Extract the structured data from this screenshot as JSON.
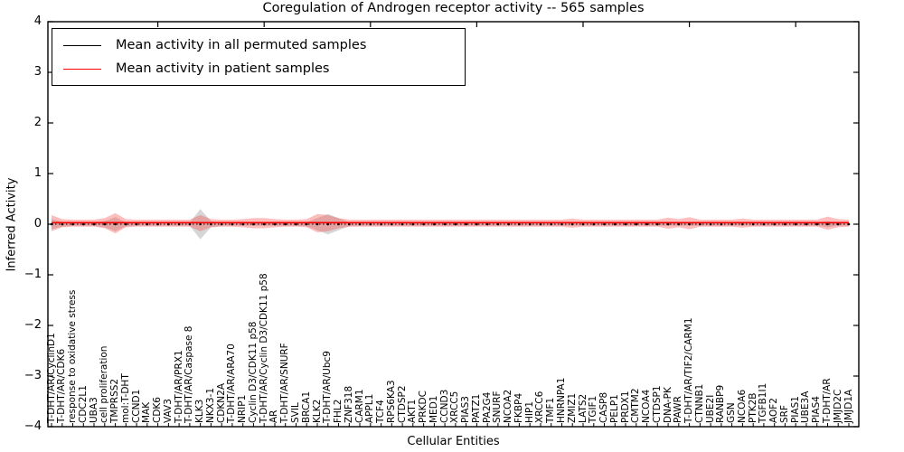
{
  "chart_data": {
    "type": "line",
    "title": "Coregulation of Androgen receptor activity -- 565 samples",
    "xlabel": "Cellular Entities",
    "ylabel": "Inferred Activity",
    "ylim": [
      -4,
      4
    ],
    "yticks": [
      "4",
      "3",
      "2",
      "1",
      "0",
      "−1",
      "−2",
      "−3",
      "−4"
    ],
    "ytick_values": [
      4,
      3,
      2,
      1,
      0,
      -1,
      -2,
      -3,
      -4
    ],
    "grid": false,
    "legend_position": "upper left",
    "categories": [
      "T-DHT/AR/CyclinD1",
      "T-DHT/AR/CDK6",
      "response to oxidative stress",
      "CDC2L1",
      "UBA3",
      "cell proliferation",
      "TMPRSS2",
      "mol:T-DHT",
      "CCND1",
      "MAK",
      "CDK6",
      "VAV3",
      "T-DHT/AR/PRX1",
      "T-DHT/AR/Caspase 8",
      "KLK3",
      "NKX3-1",
      "CDKN2A",
      "T-DHT/AR/ARA70",
      "NRIP1",
      "Cyclin D3/CDK11 p58",
      "T-DHT/AR/Cyclin D3/CDK11 p58",
      "AR",
      "T-DHT/AR/SNURF",
      "SVIL",
      "BRCA1",
      "KLK2",
      "T-DHT/AR/Ubc9",
      "FHL2",
      "ZNF318",
      "CARM1",
      "APPL1",
      "TCF4",
      "RPS6KA3",
      "CTDSP2",
      "AKT1",
      "PRKDC",
      "MED1",
      "CCND3",
      "XRCC5",
      "PIAS3",
      "PATZ1",
      "PA2G4",
      "SNURF",
      "NCOA2",
      "FKBP4",
      "HIP1",
      "XRCC6",
      "TMF1",
      "HNRNPA1",
      "ZMIZ1",
      "LATS2",
      "TGIF1",
      "CASP8",
      "PELP1",
      "PRDX1",
      "CMTM2",
      "NCOA4",
      "CTDSP1",
      "DNA-PK",
      "PAWR",
      "T-DHT/AR/TIF2/CARM1",
      "CTNNB1",
      "UBE2I",
      "RANBP9",
      "GSN",
      "NCOA6",
      "PTK2B",
      "TGFB1I1",
      "AOF2",
      "SRF",
      "PIAS1",
      "UBE3A",
      "PIAS4",
      "T-DHT/AR",
      "JMJD2C",
      "JMJD1A"
    ],
    "series": [
      {
        "name": "Mean activity in all permuted samples",
        "color": "#000000",
        "style": "dotted-with-markers",
        "values": [
          0,
          0,
          0,
          0,
          0,
          0,
          0,
          0,
          0,
          0,
          0,
          0,
          0,
          0,
          0,
          0,
          0,
          0,
          0,
          0,
          0,
          0,
          0,
          0,
          0,
          0,
          0,
          0,
          0,
          0,
          0,
          0,
          0,
          0,
          0,
          0,
          0,
          0,
          0,
          0,
          0,
          0,
          0,
          0,
          0,
          0,
          0,
          0,
          0,
          0,
          0,
          0,
          0,
          0,
          0,
          0,
          0,
          0,
          0,
          0,
          0,
          0,
          0,
          0,
          0,
          0,
          0,
          0,
          0,
          0,
          0,
          0,
          0,
          0,
          0,
          0
        ]
      },
      {
        "name": "Mean activity in patient samples",
        "color": "#ff0000",
        "style": "solid",
        "values": [
          0.03,
          0.03,
          0.03,
          0.03,
          0.03,
          0.03,
          0.03,
          0.03,
          0.03,
          0.03,
          0.03,
          0.03,
          0.03,
          0.03,
          0.03,
          0.03,
          0.03,
          0.03,
          0.03,
          0.03,
          0.03,
          0.03,
          0.03,
          0.03,
          0.03,
          0.03,
          0.03,
          0.03,
          0.03,
          0.03,
          0.03,
          0.03,
          0.03,
          0.03,
          0.03,
          0.03,
          0.03,
          0.03,
          0.03,
          0.03,
          0.03,
          0.03,
          0.03,
          0.03,
          0.03,
          0.03,
          0.03,
          0.03,
          0.03,
          0.03,
          0.03,
          0.03,
          0.03,
          0.03,
          0.03,
          0.03,
          0.03,
          0.03,
          0.03,
          0.03,
          0.03,
          0.03,
          0.03,
          0.03,
          0.03,
          0.03,
          0.03,
          0.03,
          0.03,
          0.03,
          0.03,
          0.03,
          0.03,
          0.03,
          0.03,
          0.03
        ]
      }
    ],
    "bands": [
      {
        "name": "permuted samples spread",
        "color": "#999999",
        "opacity": 0.4,
        "center": 0.0,
        "half_widths": [
          0.1,
          0.05,
          0.03,
          0.03,
          0.03,
          0.06,
          0.14,
          0.04,
          0.03,
          0.03,
          0.03,
          0.03,
          0.03,
          0.03,
          0.3,
          0.06,
          0.03,
          0.03,
          0.03,
          0.03,
          0.03,
          0.03,
          0.03,
          0.03,
          0.04,
          0.12,
          0.2,
          0.12,
          0.04,
          0.03,
          0.03,
          0.03,
          0.03,
          0.03,
          0.03,
          0.03,
          0.03,
          0.03,
          0.03,
          0.03,
          0.03,
          0.03,
          0.03,
          0.03,
          0.03,
          0.03,
          0.03,
          0.03,
          0.03,
          0.03,
          0.03,
          0.03,
          0.03,
          0.03,
          0.03,
          0.03,
          0.03,
          0.03,
          0.03,
          0.03,
          0.03,
          0.03,
          0.03,
          0.03,
          0.03,
          0.03,
          0.03,
          0.03,
          0.03,
          0.03,
          0.03,
          0.03,
          0.03,
          0.06,
          0.03,
          0.03
        ]
      },
      {
        "name": "patient samples spread",
        "color": "#ff4444",
        "opacity": 0.35,
        "center": 0.02,
        "half_widths": [
          0.16,
          0.08,
          0.07,
          0.07,
          0.07,
          0.1,
          0.2,
          0.08,
          0.07,
          0.07,
          0.07,
          0.07,
          0.07,
          0.07,
          0.16,
          0.08,
          0.07,
          0.07,
          0.08,
          0.1,
          0.1,
          0.08,
          0.07,
          0.07,
          0.08,
          0.18,
          0.16,
          0.1,
          0.07,
          0.07,
          0.07,
          0.07,
          0.07,
          0.07,
          0.07,
          0.07,
          0.07,
          0.07,
          0.07,
          0.07,
          0.07,
          0.07,
          0.07,
          0.07,
          0.07,
          0.07,
          0.07,
          0.07,
          0.07,
          0.09,
          0.07,
          0.07,
          0.07,
          0.07,
          0.07,
          0.07,
          0.07,
          0.07,
          0.11,
          0.08,
          0.12,
          0.07,
          0.07,
          0.07,
          0.07,
          0.09,
          0.07,
          0.07,
          0.07,
          0.07,
          0.07,
          0.07,
          0.07,
          0.13,
          0.08,
          0.07
        ]
      }
    ],
    "legend": [
      {
        "label": "Mean activity in all permuted samples",
        "color": "#000000"
      },
      {
        "label": "Mean activity in patient samples",
        "color": "#ff0000"
      }
    ]
  }
}
